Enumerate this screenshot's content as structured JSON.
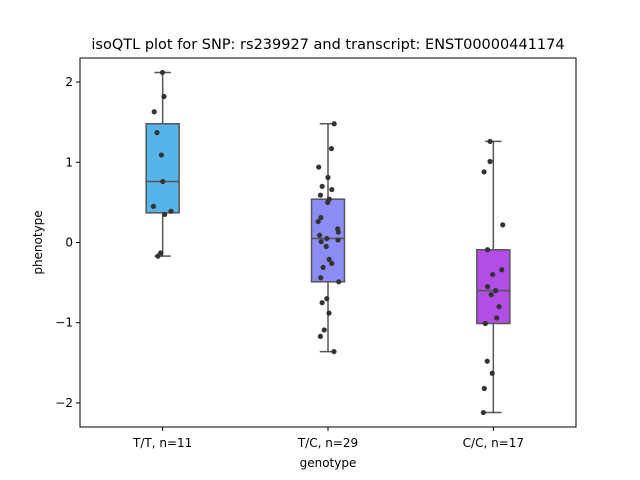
{
  "chart_data": {
    "type": "box",
    "title": "isoQTL plot for SNP: rs239927 and transcript: ENST00000441174",
    "xlabel": "genotype",
    "ylabel": "phenotype",
    "ylim": [
      -2.3,
      2.3
    ],
    "yticks": [
      -2,
      -1,
      0,
      1,
      2
    ],
    "ytick_labels": [
      "−2",
      "−1",
      "0",
      "1",
      "2"
    ],
    "grid": false,
    "categories": [
      "T/T, n=11",
      "T/C, n=29",
      "C/C, n=17"
    ],
    "colors": {
      "T/T, n=11": "#56b4e9",
      "T/C, n=29": "#8c8cf5",
      "C/C, n=17": "#b24de6"
    },
    "boxes": [
      {
        "category": "T/T, n=11",
        "whisker_low": -0.17,
        "q1": 0.37,
        "median": 0.76,
        "q3": 1.48,
        "whisker_high": 2.12
      },
      {
        "category": "T/C, n=29",
        "whisker_low": -1.36,
        "q1": -0.49,
        "median": 0.05,
        "q3": 0.54,
        "whisker_high": 1.48
      },
      {
        "category": "C/C, n=17",
        "whisker_low": -2.12,
        "q1": -1.01,
        "median": -0.6,
        "q3": -0.09,
        "whisker_high": 1.26
      }
    ],
    "points": [
      {
        "category": "T/T, n=11",
        "values": [
          2.12,
          1.82,
          1.63,
          1.37,
          1.09,
          0.76,
          0.45,
          0.39,
          0.35,
          -0.13,
          -0.17
        ]
      },
      {
        "category": "T/C, n=29",
        "values": [
          1.48,
          1.17,
          0.94,
          0.81,
          0.7,
          0.66,
          0.59,
          0.54,
          0.5,
          0.31,
          0.26,
          0.17,
          0.13,
          0.09,
          0.05,
          0.03,
          0.01,
          -0.05,
          -0.21,
          -0.26,
          -0.31,
          -0.44,
          -0.49,
          -0.7,
          -0.75,
          -0.88,
          -1.09,
          -1.17,
          -1.36
        ]
      },
      {
        "category": "C/C, n=17",
        "values": [
          1.26,
          1.01,
          0.88,
          0.22,
          -0.09,
          -0.34,
          -0.4,
          -0.55,
          -0.6,
          -0.65,
          -0.8,
          -0.94,
          -1.01,
          -1.48,
          -1.63,
          -1.82,
          -2.12
        ]
      }
    ]
  }
}
